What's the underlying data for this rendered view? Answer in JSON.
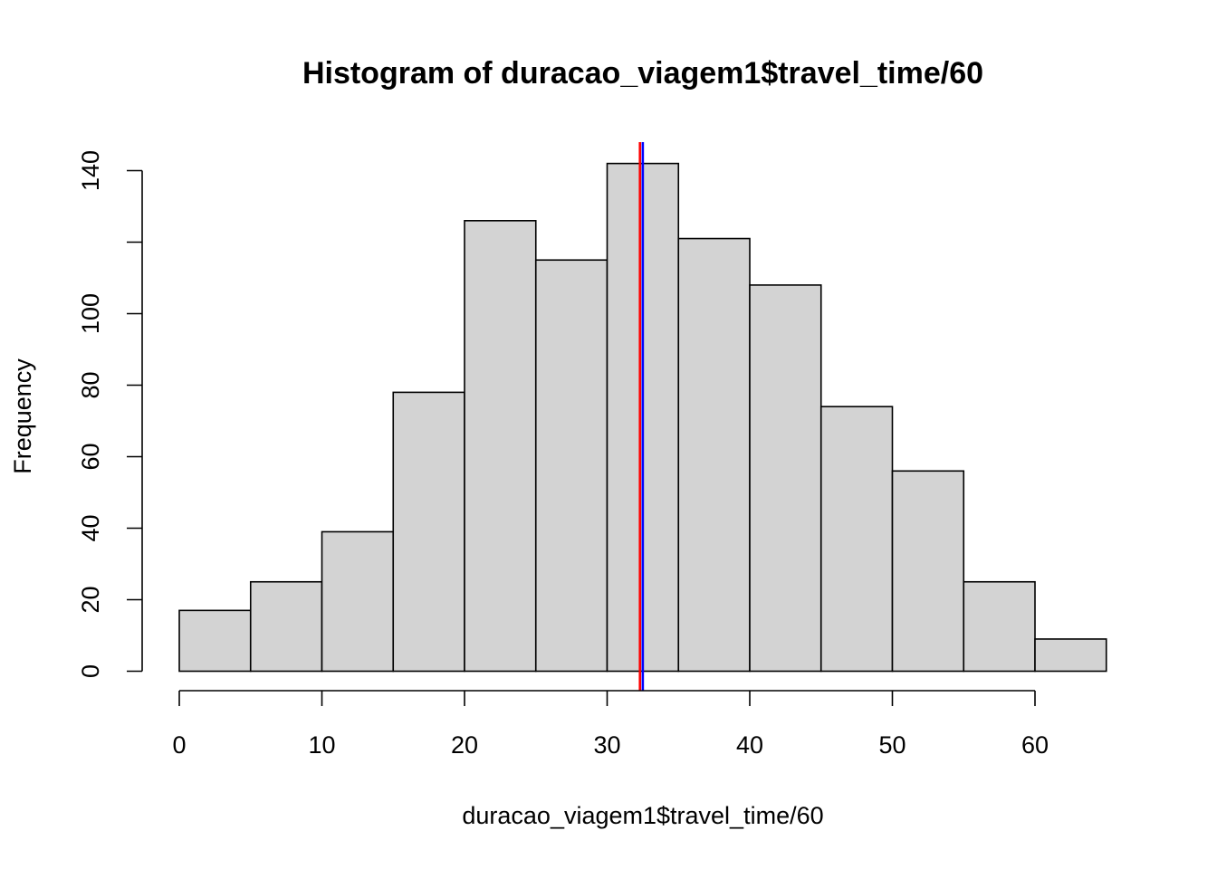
{
  "chart_data": {
    "type": "bar",
    "subtype": "histogram",
    "title": "Histogram of duracao_viagem1$travel_time/60",
    "xlabel": "duracao_viagem1$travel_time/60",
    "ylabel": "Frequency",
    "bins": [
      {
        "from": 0,
        "to": 5,
        "count": 17
      },
      {
        "from": 5,
        "to": 10,
        "count": 25
      },
      {
        "from": 10,
        "to": 15,
        "count": 39
      },
      {
        "from": 15,
        "to": 20,
        "count": 78
      },
      {
        "from": 20,
        "to": 25,
        "count": 126
      },
      {
        "from": 25,
        "to": 30,
        "count": 115
      },
      {
        "from": 30,
        "to": 35,
        "count": 142
      },
      {
        "from": 35,
        "to": 40,
        "count": 121
      },
      {
        "from": 40,
        "to": 45,
        "count": 108
      },
      {
        "from": 45,
        "to": 50,
        "count": 74
      },
      {
        "from": 50,
        "to": 55,
        "count": 56
      },
      {
        "from": 55,
        "to": 60,
        "count": 25
      },
      {
        "from": 60,
        "to": 65,
        "count": 9
      }
    ],
    "xlim": [
      0,
      65
    ],
    "ylim": [
      0,
      150
    ],
    "x_ticks": [
      0,
      10,
      20,
      30,
      40,
      50,
      60
    ],
    "y_ticks": [
      0,
      20,
      40,
      60,
      80,
      100,
      120,
      140
    ],
    "y_tick_labels": [
      "0",
      "20",
      "40",
      "60",
      "80",
      "100",
      "",
      "140"
    ],
    "vlines": [
      {
        "x": 32.3,
        "color": "#ff0000"
      },
      {
        "x": 32.5,
        "color": "#0000ff"
      }
    ],
    "grid": false,
    "colors": {
      "bar_fill": "#d3d3d3",
      "bar_stroke": "#000000"
    }
  }
}
